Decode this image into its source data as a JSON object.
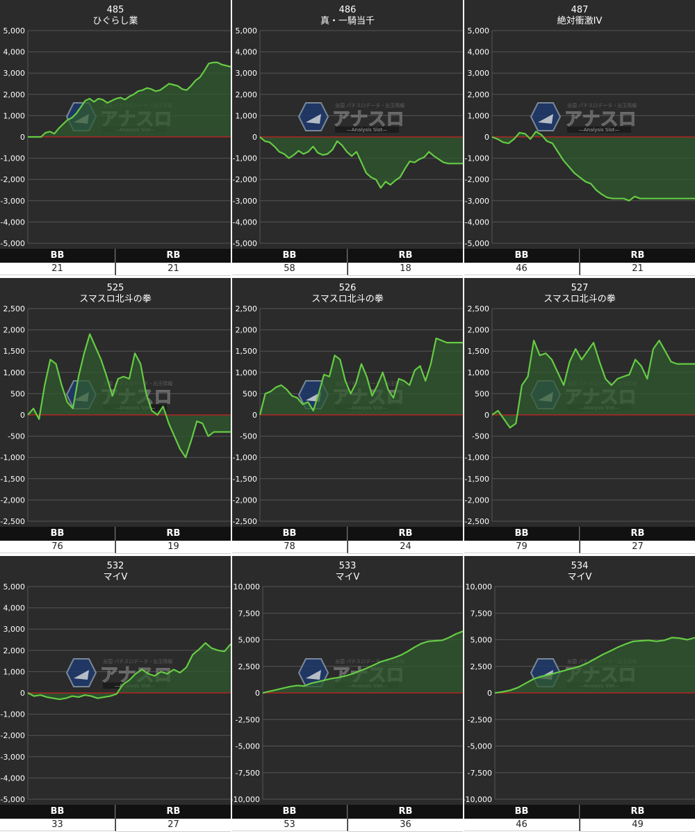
{
  "colors": {
    "background": "#2b2b2b",
    "gridline": "#555555",
    "zero_line": "#cc2222",
    "series_line": "#66cc44",
    "series_fill": "#2f5a2f",
    "header_bg": "#111111"
  },
  "watermark": {
    "brand": "アナスロ",
    "tagline": "全国 パチスロデータ・出玉情報",
    "subtitle": "—Analysis Slot—"
  },
  "stat_labels": {
    "bb": "BB",
    "rb": "RB"
  },
  "chart_data": [
    {
      "type": "area",
      "number": "485",
      "title": "ひぐらし業",
      "ylim": [
        -5000,
        5000
      ],
      "yticks": [
        5000,
        4000,
        3000,
        2000,
        1000,
        0,
        -1000,
        -2000,
        -3000,
        -4000,
        -5000
      ],
      "ytick_labels": [
        "5,000",
        "4,000",
        "3,000",
        "2,000",
        "1,000",
        "0",
        "-1,000",
        "-2,000",
        "-3,000",
        "-4,000",
        "-5,000"
      ],
      "values": [
        0,
        0,
        0,
        0,
        200,
        250,
        150,
        400,
        600,
        800,
        900,
        1100,
        1400,
        1700,
        1800,
        1650,
        1800,
        1750,
        1600,
        1700,
        1800,
        1850,
        1750,
        1900,
        2000,
        2150,
        2200,
        2300,
        2250,
        2150,
        2200,
        2350,
        2500,
        2450,
        2400,
        2250,
        2200,
        2400,
        2650,
        2800,
        3100,
        3450,
        3500,
        3500,
        3400,
        3350,
        3300
      ],
      "bb": "21",
      "rb": "21"
    },
    {
      "type": "area",
      "number": "486",
      "title": "真・一騎当千",
      "ylim": [
        -5000,
        5000
      ],
      "yticks": [
        5000,
        4000,
        3000,
        2000,
        1000,
        0,
        -1000,
        -2000,
        -3000,
        -4000,
        -5000
      ],
      "ytick_labels": [
        "5,000",
        "4,000",
        "3,000",
        "2,000",
        "1,000",
        "0",
        "-1,000",
        "-2,000",
        "-3,000",
        "-4,000",
        "-5,000"
      ],
      "values": [
        0,
        -200,
        -250,
        -450,
        -700,
        -800,
        -1000,
        -850,
        -650,
        -800,
        -700,
        -450,
        -750,
        -850,
        -800,
        -600,
        -200,
        -400,
        -700,
        -900,
        -700,
        -1200,
        -1700,
        -1900,
        -2000,
        -2400,
        -2100,
        -2250,
        -2050,
        -1900,
        -1500,
        -1150,
        -1200,
        -1050,
        -950,
        -700,
        -900,
        -1050,
        -1200,
        -1250,
        -1250,
        -1250,
        -1250
      ],
      "bb": "58",
      "rb": "18"
    },
    {
      "type": "area",
      "number": "487",
      "title": "絶対衝激IV",
      "ylim": [
        -5000,
        5000
      ],
      "yticks": [
        5000,
        4000,
        3000,
        2000,
        1000,
        0,
        -1000,
        -2000,
        -3000,
        -4000,
        -5000
      ],
      "ytick_labels": [
        "5,000",
        "4,000",
        "3,000",
        "2,000",
        "1,000",
        "0",
        "-1,000",
        "-2,000",
        "-3,000",
        "-4,000",
        "-5,000"
      ],
      "values": [
        0,
        -100,
        -250,
        -300,
        -100,
        200,
        150,
        -100,
        250,
        100,
        -200,
        -300,
        -700,
        -1100,
        -1400,
        -1700,
        -1900,
        -2100,
        -2200,
        -2500,
        -2700,
        -2850,
        -2900,
        -2900,
        -2900,
        -3000,
        -2800,
        -2900,
        -2900,
        -2900,
        -2900,
        -2900,
        -2900,
        -2900,
        -2900,
        -2900,
        -2900,
        -2900
      ],
      "bb": "46",
      "rb": "21"
    },
    {
      "type": "area",
      "number": "525",
      "title": "スマスロ北斗の拳",
      "ylim": [
        -2500,
        2500
      ],
      "yticks": [
        2500,
        2000,
        1500,
        1000,
        500,
        0,
        -500,
        -1000,
        -1500,
        -2000,
        -2500
      ],
      "ytick_labels": [
        "2,500",
        "2,000",
        "1,500",
        "1,000",
        "500",
        "0",
        "-500",
        "-1,000",
        "-1,500",
        "-2,000",
        "-2,500"
      ],
      "values": [
        0,
        150,
        -100,
        700,
        1300,
        1200,
        700,
        300,
        150,
        900,
        1450,
        1900,
        1600,
        1300,
        900,
        450,
        850,
        900,
        850,
        1450,
        1200,
        500,
        100,
        0,
        200,
        -200,
        -500,
        -800,
        -1000,
        -600,
        -150,
        -200,
        -500,
        -400,
        -400,
        -400,
        -400
      ],
      "bb": "76",
      "rb": "19"
    },
    {
      "type": "area",
      "number": "526",
      "title": "スマスロ北斗の拳",
      "ylim": [
        -2500,
        2500
      ],
      "yticks": [
        2500,
        2000,
        1500,
        1000,
        500,
        0,
        -500,
        -1000,
        -1500,
        -2000,
        -2500
      ],
      "ytick_labels": [
        "2,500",
        "2,000",
        "1,500",
        "1,000",
        "500",
        "0",
        "-500",
        "-1,000",
        "-1,500",
        "-2,000",
        "-2,500"
      ],
      "values": [
        0,
        500,
        550,
        650,
        700,
        600,
        450,
        400,
        250,
        300,
        100,
        500,
        950,
        900,
        1400,
        1300,
        800,
        500,
        750,
        1200,
        900,
        450,
        700,
        1000,
        600,
        400,
        850,
        800,
        700,
        1050,
        1150,
        800,
        1200,
        1800,
        1750,
        1700,
        1700,
        1700,
        1700
      ],
      "bb": "78",
      "rb": "24"
    },
    {
      "type": "area",
      "number": "527",
      "title": "スマスロ北斗の拳",
      "ylim": [
        -2500,
        2500
      ],
      "yticks": [
        2500,
        2000,
        1500,
        1000,
        500,
        0,
        -500,
        -1000,
        -1500,
        -2000,
        -2500
      ],
      "ytick_labels": [
        "2,500",
        "2,000",
        "1,500",
        "1,000",
        "500",
        "0",
        "-500",
        "-1,000",
        "-1,500",
        "-2,000",
        "-2,500"
      ],
      "values": [
        0,
        100,
        -100,
        -300,
        -200,
        700,
        900,
        1750,
        1400,
        1450,
        1300,
        1000,
        700,
        1250,
        1550,
        1300,
        1500,
        1700,
        1250,
        850,
        700,
        850,
        900,
        950,
        1300,
        1150,
        850,
        1550,
        1750,
        1500,
        1250,
        1200,
        1200,
        1200,
        1200
      ],
      "bb": "79",
      "rb": "27"
    },
    {
      "type": "area",
      "number": "532",
      "title": "マイV",
      "ylim": [
        -5000,
        5000
      ],
      "yticks": [
        5000,
        4000,
        3000,
        2000,
        1000,
        0,
        -1000,
        -2000,
        -3000,
        -4000,
        -5000
      ],
      "ytick_labels": [
        "5,000",
        "4,000",
        "3,000",
        "2,000",
        "1,000",
        "0",
        "-1,000",
        "-2,000",
        "-3,000",
        "-4,000",
        "-5,000"
      ],
      "values": [
        0,
        -150,
        -100,
        -200,
        -250,
        -300,
        -250,
        -150,
        -200,
        -100,
        -150,
        -250,
        -200,
        -150,
        -50,
        400,
        600,
        900,
        1100,
        900,
        800,
        1000,
        900,
        1100,
        950,
        1200,
        1800,
        2050,
        2350,
        2100,
        2000,
        1950,
        2300
      ],
      "bb": "33",
      "rb": "27"
    },
    {
      "type": "area",
      "number": "533",
      "title": "マイV",
      "ylim": [
        -10000,
        10000
      ],
      "yticks": [
        10000,
        7500,
        5000,
        2500,
        0,
        -2500,
        -5000,
        -7500,
        -10000
      ],
      "ytick_labels": [
        "10,000",
        "7,500",
        "5,000",
        "2,500",
        "0",
        "-2,500",
        "-5,000",
        "-7,500",
        "-10,000"
      ],
      "values": [
        0,
        150,
        300,
        450,
        600,
        700,
        650,
        900,
        1050,
        1200,
        1350,
        1450,
        1600,
        1800,
        2050,
        2300,
        2600,
        2900,
        3100,
        3300,
        3550,
        3900,
        4300,
        4650,
        4850,
        4900,
        4950,
        5200,
        5550,
        5800
      ],
      "bb": "53",
      "rb": "36"
    },
    {
      "type": "area",
      "number": "534",
      "title": "マイV",
      "ylim": [
        -10000,
        10000
      ],
      "yticks": [
        10000,
        7500,
        5000,
        2500,
        0,
        -2500,
        -5000,
        -7500,
        -10000
      ],
      "ytick_labels": [
        "10,000",
        "7,500",
        "5,000",
        "2,500",
        "0",
        "-2,500",
        "-5,000",
        "-7,500",
        "-10,000"
      ],
      "values": [
        0,
        100,
        250,
        500,
        900,
        1300,
        1550,
        1700,
        1900,
        2100,
        2300,
        2500,
        2800,
        3200,
        3600,
        3950,
        4300,
        4600,
        4850,
        4900,
        4950,
        4850,
        4950,
        5200,
        5150,
        5000,
        5200
      ],
      "bb": "46",
      "rb": "49"
    }
  ]
}
